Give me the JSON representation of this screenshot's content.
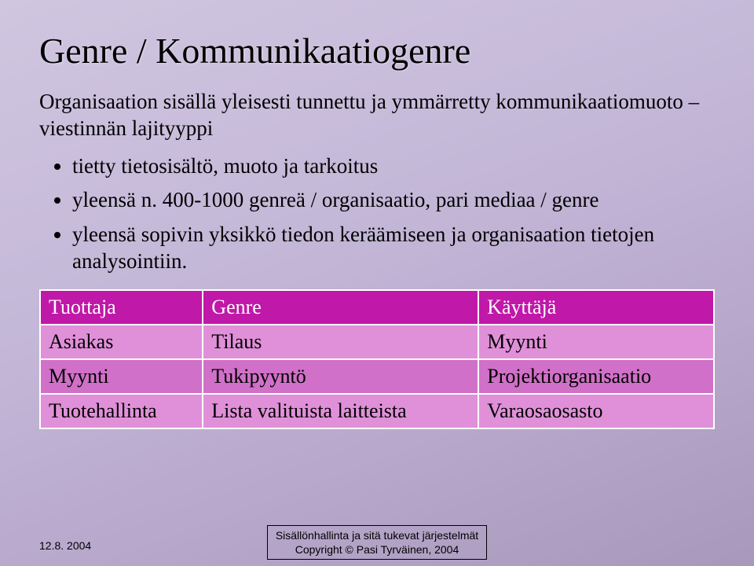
{
  "title": "Genre / Kommunikaatiogenre",
  "intro": "Organisaation sisällä yleisesti tunnettu ja ymmärretty kommunikaatiomuoto – viestinnän lajityyppi",
  "bullets": {
    "b1": "tietty tietosisältö, muoto ja tarkoitus",
    "b2": "yleensä n. 400-1000 genreä / organisaatio, pari mediaa / genre",
    "b3": "yleensä sopivin yksikkö tiedon keräämiseen ja organisaation tietojen analysointiin."
  },
  "table": {
    "headers": {
      "c1": "Tuottaja",
      "c2": "Genre",
      "c3": "Käyttäjä"
    },
    "rows": {
      "r1": {
        "c1": "Asiakas",
        "c2": "Tilaus",
        "c3": "Myynti"
      },
      "r2": {
        "c1": "Myynti",
        "c2": "Tukipyyntö",
        "c3": "Projektiorganisaatio"
      },
      "r3": {
        "c1": "Tuotehallinta",
        "c2": "Lista valituista laitteista",
        "c3": "Varaosaosasto"
      }
    },
    "header_bg": "#c018a8",
    "row_odd_bg": "#e090d8",
    "row_even_bg": "#d070c8",
    "border_color": "#ffffff"
  },
  "footer": {
    "left": "12.8. 2004",
    "center1": "Sisällönhallinta ja sitä tukevat järjestelmät",
    "center2": "Copyright © Pasi Tyrväinen, 2004"
  },
  "colors": {
    "bg_grad_start": "#d0c6e0",
    "bg_grad_end": "#a898bc",
    "text": "#000000"
  }
}
